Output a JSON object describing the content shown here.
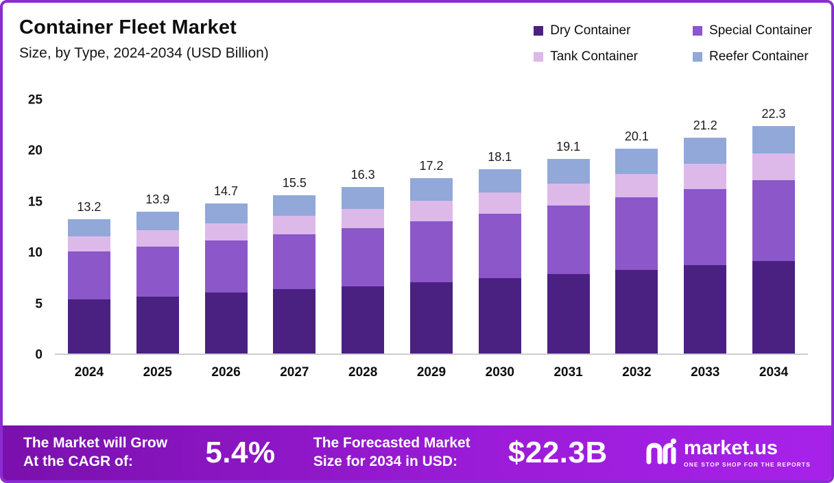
{
  "header": {
    "title": "Container Fleet Market",
    "subtitle": "Size, by Type, 2024-2034 (USD Billion)"
  },
  "legend": [
    {
      "label": "Dry Container",
      "color": "#4a2081"
    },
    {
      "label": "Special Container",
      "color": "#8c57c8"
    },
    {
      "label": "Tank Container",
      "color": "#dcb9e9"
    },
    {
      "label": "Reefer Container",
      "color": "#91a8d9"
    }
  ],
  "chart_data": {
    "type": "bar",
    "stacked": true,
    "title": "Container Fleet Market Size, by Type, 2024-2034 (USD Billion)",
    "categories": [
      "2024",
      "2025",
      "2026",
      "2027",
      "2028",
      "2029",
      "2030",
      "2031",
      "2032",
      "2033",
      "2034"
    ],
    "series": [
      {
        "name": "Dry Container",
        "color": "#4a2081",
        "values": [
          5.3,
          5.6,
          6.0,
          6.3,
          6.6,
          7.0,
          7.4,
          7.8,
          8.2,
          8.7,
          9.1
        ]
      },
      {
        "name": "Special Container",
        "color": "#8c57c8",
        "values": [
          4.7,
          4.9,
          5.1,
          5.4,
          5.7,
          6.0,
          6.3,
          6.7,
          7.1,
          7.4,
          7.9
        ]
      },
      {
        "name": "Tank Container",
        "color": "#dcb9e9",
        "values": [
          1.5,
          1.6,
          1.7,
          1.8,
          1.9,
          2.0,
          2.1,
          2.2,
          2.3,
          2.5,
          2.6
        ]
      },
      {
        "name": "Reefer Container",
        "color": "#91a8d9",
        "values": [
          1.7,
          1.8,
          1.9,
          2.0,
          2.1,
          2.2,
          2.3,
          2.4,
          2.5,
          2.6,
          2.7
        ]
      }
    ],
    "totals": [
      13.2,
      13.9,
      14.7,
      15.5,
      16.3,
      17.2,
      18.1,
      19.1,
      20.1,
      21.2,
      22.3
    ],
    "xlabel": "",
    "ylabel": "",
    "ylim": [
      0,
      25
    ],
    "yticks": [
      0,
      5,
      10,
      15,
      20,
      25
    ],
    "grid": false,
    "legend_position": "top-right"
  },
  "footer": {
    "cagr_label_line1": "The Market will Grow",
    "cagr_label_line2": "At the CAGR of:",
    "cagr_value": "5.4%",
    "forecast_label_line1": "The Forecasted Market",
    "forecast_label_line2": "Size for 2034 in USD:",
    "forecast_value": "$22.3B",
    "brand": "market.us",
    "brand_tagline": "ONE STOP SHOP FOR THE REPORTS",
    "logo_icon": "market-us-logo"
  },
  "theme": {
    "frame_border": "#8d2bd2",
    "footer_gradient_start": "#7a10ad",
    "footer_gradient_end": "#a722e9",
    "axis_line": "#cccccc",
    "text": "#0d0d0d"
  }
}
